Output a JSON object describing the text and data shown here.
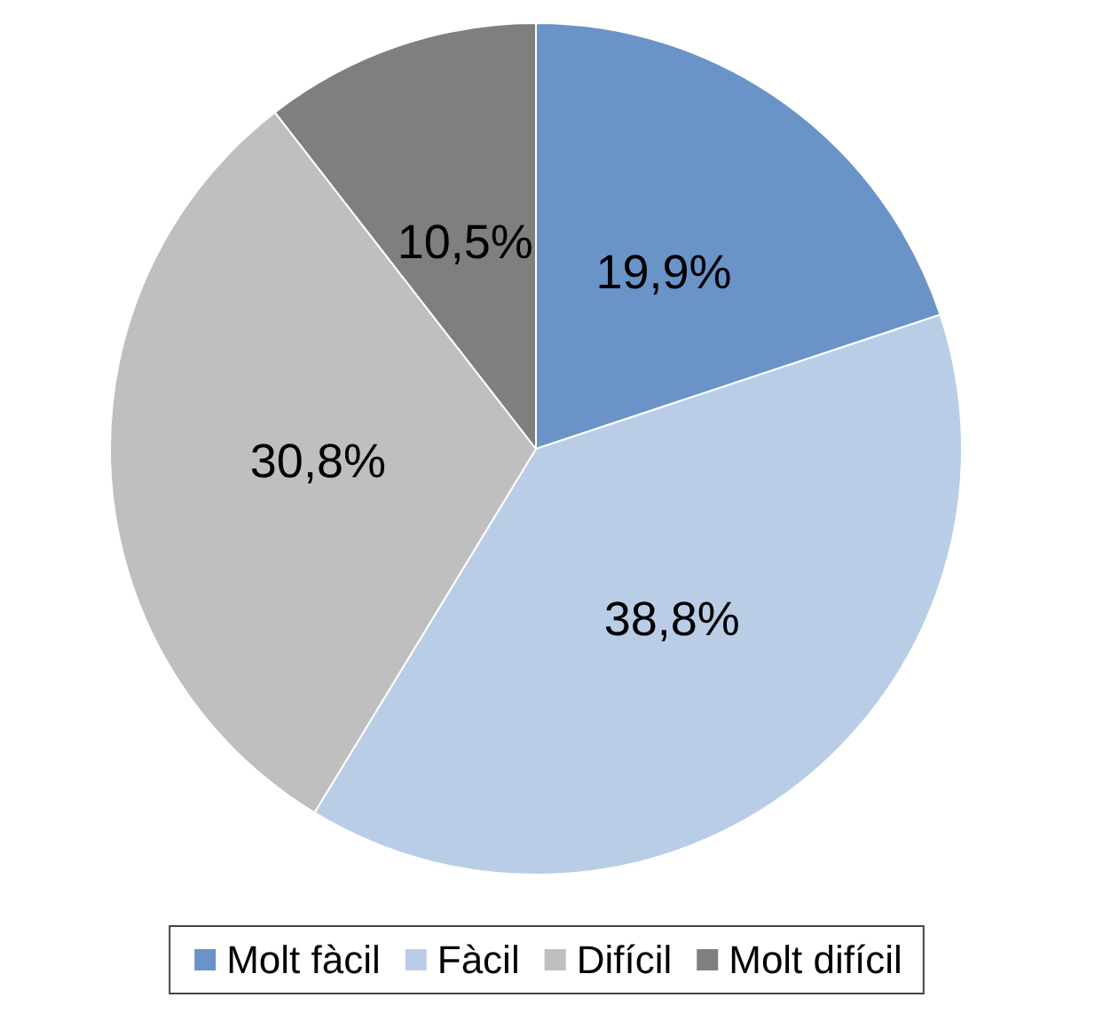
{
  "chart_data": {
    "type": "pie",
    "categories": [
      "Molt fàcil",
      "Fàcil",
      "Difícil",
      "Molt difícil"
    ],
    "values": [
      19.9,
      38.8,
      30.8,
      10.5
    ],
    "colors": [
      "#6a93c8",
      "#b9cde6",
      "#bfbfbf",
      "#7f7f7f"
    ],
    "value_labels": [
      "19,9%",
      "38,8%",
      "30,8%",
      "10,5%"
    ],
    "legend": "bottom"
  }
}
